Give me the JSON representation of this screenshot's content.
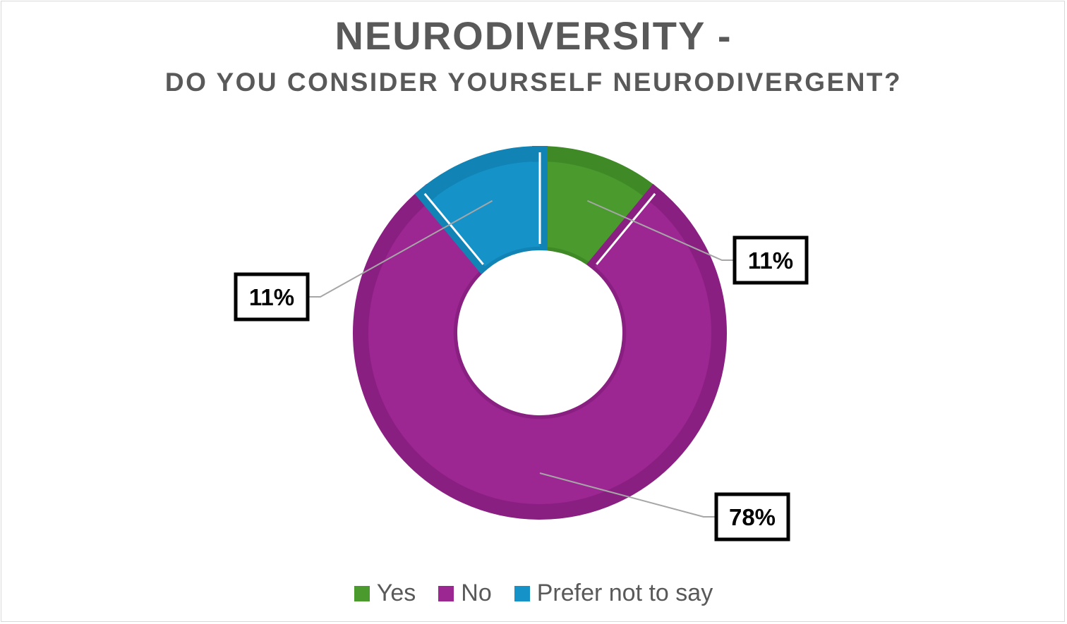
{
  "chart_data": {
    "type": "pie",
    "variant": "donut",
    "title": "NEURODIVERSITY -",
    "subtitle": "DO YOU CONSIDER YOURSELF NEURODIVERGENT?",
    "categories": [
      "Yes",
      "No",
      "Prefer not to say"
    ],
    "values": [
      11,
      78,
      11
    ],
    "data_labels": [
      "11%",
      "78%",
      "11%"
    ],
    "colors": [
      "#4a9a2e",
      "#9c2792",
      "#1593c9"
    ],
    "border_colors": [
      "#3f8a26",
      "#8a1f82",
      "#1183b5"
    ],
    "legend_position": "bottom"
  }
}
